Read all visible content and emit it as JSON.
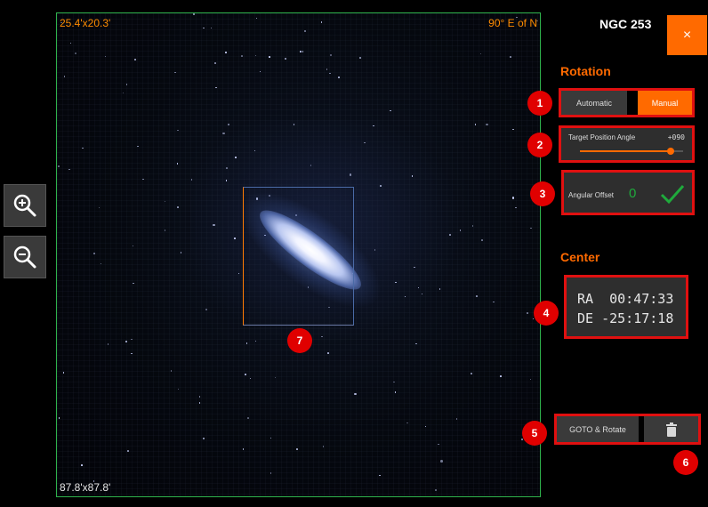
{
  "object_name": "NGC 253",
  "fov": {
    "top_left": "25.4'x20.3'",
    "top_right": "90° E of N",
    "bottom_left": "87.8'x87.8'"
  },
  "toolbar": {
    "zoom_in_icon": "zoom-in-icon",
    "zoom_out_icon": "zoom-out-icon",
    "close_icon": "close-icon",
    "close_glyph": "×"
  },
  "rotation": {
    "title": "Rotation",
    "modes": {
      "automatic": "Automatic",
      "manual": "Manual",
      "selected": "Manual"
    },
    "position_angle": {
      "label": "Target Position Angle",
      "value_text": "+090",
      "slider_fraction": 0.88
    },
    "angular_offset": {
      "label": "Angular Offset",
      "value": "0",
      "status_icon": "check-icon"
    }
  },
  "center": {
    "title": "Center",
    "ra_line": "RA  00:47:33",
    "de_line": "DE -25:17:18"
  },
  "actions": {
    "goto_label": "GOTO & Rotate",
    "trash_icon": "trash-icon"
  },
  "markers": [
    "1",
    "2",
    "3",
    "4",
    "5",
    "6",
    "7"
  ],
  "colors": {
    "accent": "#ff6a00",
    "frame_border": "#2fb24c",
    "highlight": "#e01010",
    "ok": "#1faa3c"
  }
}
